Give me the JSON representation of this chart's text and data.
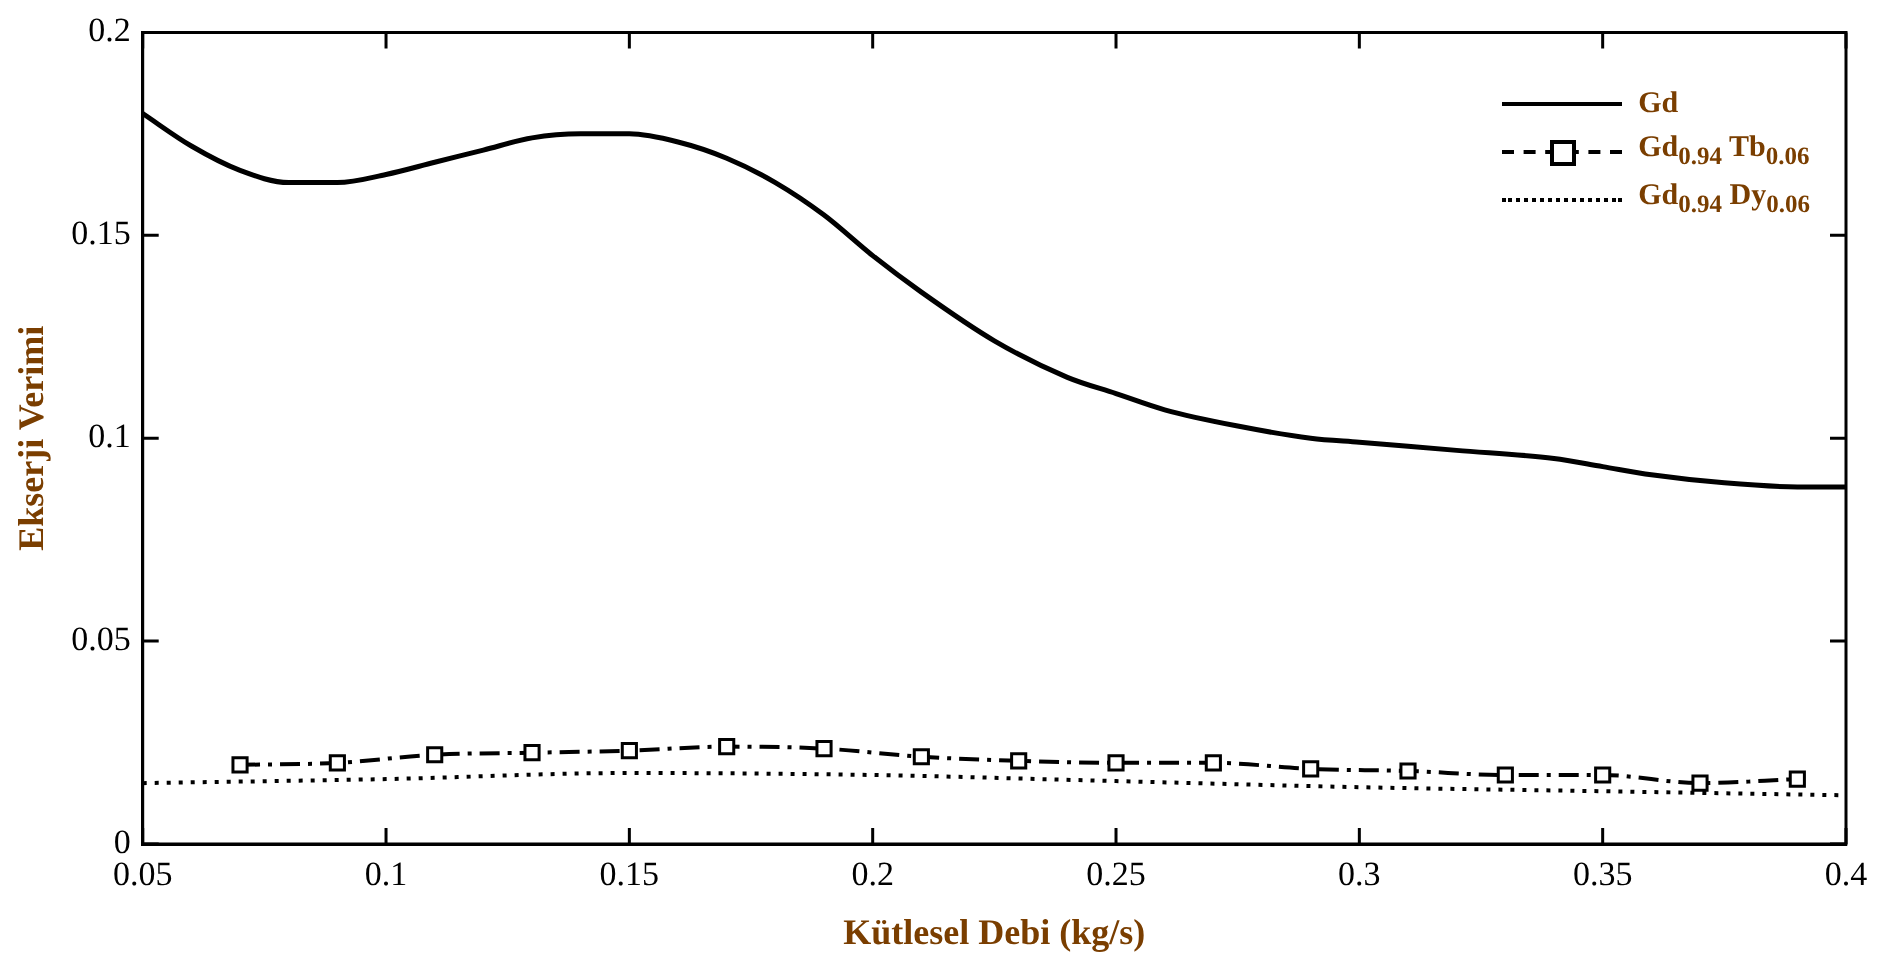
{
  "chart_data": {
    "type": "line",
    "xlabel": "Kütlesel Debi (kg/s)",
    "ylabel": "Ekserji Verimi",
    "xlim": [
      0.05,
      0.4
    ],
    "xticks": [
      0.05,
      0.1,
      0.15,
      0.2,
      0.25,
      0.3,
      0.35,
      0.4
    ],
    "ylim": [
      0,
      0.2
    ],
    "yticks": [
      0,
      0.05,
      0.1,
      0.15,
      0.2
    ],
    "grid": false,
    "legend": "top right",
    "series": [
      {
        "name": "Gd",
        "color": "#000000",
        "line_style": "solid",
        "marker": "none",
        "x": [
          0.05,
          0.06,
          0.07,
          0.08,
          0.09,
          0.1,
          0.11,
          0.12,
          0.13,
          0.14,
          0.15,
          0.16,
          0.17,
          0.18,
          0.19,
          0.2,
          0.21,
          0.225,
          0.24,
          0.25,
          0.26,
          0.275,
          0.29,
          0.3,
          0.32,
          0.34,
          0.35,
          0.36,
          0.375,
          0.39,
          0.4
        ],
        "values": [
          0.18,
          0.172,
          0.166,
          0.163,
          0.163,
          0.165,
          0.168,
          0.171,
          0.174,
          0.175,
          0.175,
          0.173,
          0.169,
          0.163,
          0.155,
          0.145,
          0.136,
          0.124,
          0.115,
          0.111,
          0.107,
          0.103,
          0.1,
          0.099,
          0.097,
          0.095,
          0.093,
          0.091,
          0.089,
          0.088,
          0.088
        ]
      },
      {
        "name": "Gd$_{0.94}$ Tb$_{0.06}$",
        "color": "#000000",
        "line_style": "dashed",
        "marker": "square",
        "x": [
          0.07,
          0.09,
          0.11,
          0.13,
          0.15,
          0.17,
          0.19,
          0.21,
          0.23,
          0.25,
          0.27,
          0.29,
          0.31,
          0.33,
          0.35,
          0.37,
          0.39
        ],
        "values": [
          0.0195,
          0.02,
          0.022,
          0.0225,
          0.023,
          0.024,
          0.0235,
          0.0215,
          0.0205,
          0.02,
          0.02,
          0.0185,
          0.018,
          0.017,
          0.017,
          0.015,
          0.016
        ]
      },
      {
        "name": "Gd$_{0.94}$ Dy$_{0.06}$",
        "color": "#000000",
        "line_style": "dotted",
        "marker": "none",
        "x": [
          0.05,
          0.1,
          0.15,
          0.2,
          0.25,
          0.3,
          0.35,
          0.4
        ],
        "values": [
          0.015,
          0.016,
          0.0175,
          0.017,
          0.0155,
          0.014,
          0.013,
          0.012
        ]
      }
    ]
  }
}
